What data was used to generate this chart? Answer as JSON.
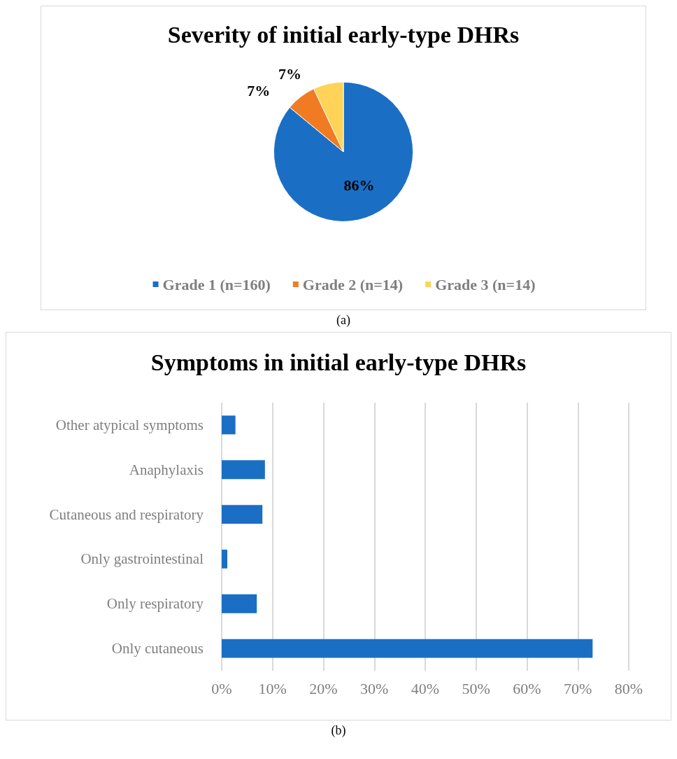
{
  "chart_data": [
    {
      "type": "pie",
      "title": "Severity of initial early-type DHRs",
      "categories": [
        "Grade 1 (n=160)",
        "Grade 2 (n=14)",
        "Grade 3 (n=14)"
      ],
      "values": [
        86,
        7,
        7
      ],
      "colors": [
        "#1a6fc4",
        "#f07b22",
        "#ffd357"
      ],
      "value_labels": [
        "86%",
        "7%",
        "7%"
      ],
      "legend": "bottom",
      "annotations": [
        "(a)"
      ]
    },
    {
      "type": "bar",
      "orientation": "horizontal",
      "title": "Symptoms in initial early-type DHRs",
      "categories": [
        "Other atypical symptoms",
        "Anaphylaxis",
        "Cutaneous and respiratory",
        "Only gastrointestinal",
        "Only respiratory",
        "Only cutaneous"
      ],
      "values": [
        2.7,
        8.5,
        8.0,
        1.1,
        6.9,
        72.9
      ],
      "color": "#1a6fc4",
      "xlim": [
        0,
        80
      ],
      "xticks": [
        {
          "value": 0,
          "label": "0%"
        },
        {
          "value": 10,
          "label": "10%"
        },
        {
          "value": 20,
          "label": "20%"
        },
        {
          "value": 30,
          "label": "30%"
        },
        {
          "value": 40,
          "label": "40%"
        },
        {
          "value": 50,
          "label": "50%"
        },
        {
          "value": 60,
          "label": "60%"
        },
        {
          "value": 70,
          "label": "70%"
        },
        {
          "value": 80,
          "label": "80%"
        }
      ],
      "grid": "x",
      "legend": false,
      "annotations": [
        "(b)"
      ]
    }
  ]
}
